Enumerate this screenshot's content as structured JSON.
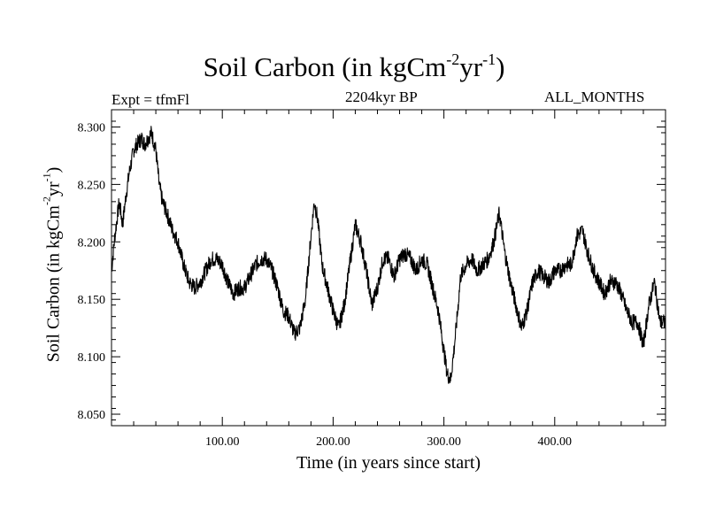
{
  "header": {
    "title_main": "Soil Carbon (in kgCm",
    "title_sup1": "-2",
    "title_mid": "yr",
    "title_sup2": "-1",
    "title_end": ")",
    "expt": "Expt = tfmFl",
    "date": "2204kyr BP",
    "months": "ALL_MONTHS"
  },
  "chart_data": {
    "type": "line",
    "title": "Soil Carbon (in kgCm-2yr-1)",
    "xlabel": "Time (in years since start)",
    "ylabel": "Soil Carbon (in kgCm-2yr-1)",
    "ylabel_parts": {
      "a": "Soil Carbon (in kgCm",
      "s1": "-2",
      "b": "yr",
      "s2": "-1",
      "c": ")"
    },
    "xlim": [
      0,
      500
    ],
    "ylim": [
      8.04,
      8.315
    ],
    "xticks": [
      100,
      200,
      300,
      400
    ],
    "xtick_labels": [
      "100.00",
      "200.00",
      "300.00",
      "400.00"
    ],
    "yticks": [
      8.05,
      8.1,
      8.15,
      8.2,
      8.25,
      8.3
    ],
    "ytick_labels": [
      "8.050",
      "8.100",
      "8.150",
      "8.200",
      "8.250",
      "8.300"
    ],
    "grid": false,
    "color": "#000000",
    "series": [
      {
        "x": [
          0,
          3,
          7,
          10,
          13,
          16,
          20,
          23,
          27,
          30,
          33,
          36,
          40,
          43,
          46,
          50,
          55,
          60,
          65,
          70,
          75,
          80,
          85,
          90,
          95,
          100,
          105,
          110,
          115,
          120,
          125,
          130,
          135,
          140,
          145,
          150,
          155,
          160,
          165,
          170,
          175,
          180,
          183,
          186,
          190,
          195,
          200,
          205,
          210,
          215,
          220,
          225,
          230,
          235,
          240,
          245,
          250,
          255,
          260,
          265,
          270,
          275,
          280,
          285,
          290,
          295,
          300,
          303,
          306,
          309,
          312,
          315,
          320,
          325,
          330,
          335,
          340,
          345,
          350,
          355,
          360,
          365,
          370,
          375,
          380,
          385,
          390,
          395,
          400,
          405,
          410,
          415,
          420,
          425,
          430,
          435,
          440,
          445,
          450,
          455,
          460,
          465,
          470,
          475,
          480,
          485,
          490,
          495,
          500
        ],
        "y": [
          8.175,
          8.205,
          8.235,
          8.215,
          8.24,
          8.26,
          8.28,
          8.285,
          8.29,
          8.285,
          8.29,
          8.295,
          8.28,
          8.25,
          8.235,
          8.225,
          8.21,
          8.2,
          8.18,
          8.165,
          8.16,
          8.165,
          8.175,
          8.185,
          8.185,
          8.18,
          8.165,
          8.155,
          8.16,
          8.16,
          8.17,
          8.18,
          8.185,
          8.185,
          8.175,
          8.16,
          8.14,
          8.135,
          8.12,
          8.125,
          8.15,
          8.205,
          8.235,
          8.22,
          8.18,
          8.16,
          8.14,
          8.125,
          8.145,
          8.18,
          8.215,
          8.2,
          8.175,
          8.145,
          8.16,
          8.185,
          8.185,
          8.17,
          8.185,
          8.19,
          8.185,
          8.175,
          8.185,
          8.18,
          8.16,
          8.14,
          8.105,
          8.085,
          8.08,
          8.105,
          8.135,
          8.17,
          8.18,
          8.185,
          8.175,
          8.18,
          8.185,
          8.2,
          8.225,
          8.19,
          8.165,
          8.145,
          8.125,
          8.14,
          8.165,
          8.175,
          8.17,
          8.165,
          8.175,
          8.175,
          8.18,
          8.18,
          8.205,
          8.21,
          8.19,
          8.175,
          8.165,
          8.155,
          8.165,
          8.165,
          8.155,
          8.14,
          8.13,
          8.13,
          8.11,
          8.145,
          8.165,
          8.13,
          8.13
        ]
      }
    ]
  }
}
